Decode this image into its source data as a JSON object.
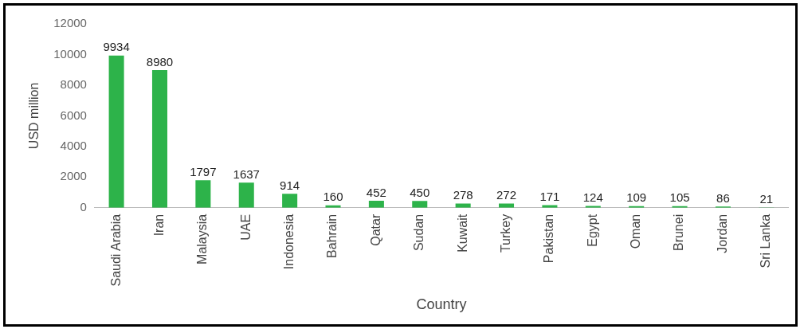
{
  "chart_data": {
    "type": "bar",
    "xlabel": "Country",
    "ylabel": "USD million",
    "categories": [
      "Saudi Arabia",
      "Iran",
      "Malaysia",
      "UAE",
      "Indonesia",
      "Bahrain",
      "Qatar",
      "Sudan",
      "Kuwait",
      "Turkey",
      "Pakistan",
      "Egypt",
      "Oman",
      "Brunei",
      "Jordan",
      "Sri Lanka"
    ],
    "values": [
      9934,
      8980,
      1797,
      1637,
      914,
      160,
      452,
      450,
      278,
      272,
      171,
      124,
      109,
      105,
      86,
      21
    ],
    "color": "#2db34a",
    "ylim": [
      0,
      12000
    ],
    "yticks": [
      0,
      2000,
      4000,
      6000,
      8000,
      10000,
      12000
    ],
    "grid": false,
    "legend": false,
    "data_labels": true
  }
}
